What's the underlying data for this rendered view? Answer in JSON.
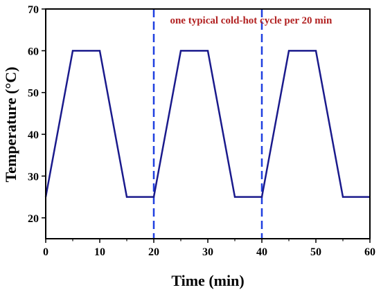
{
  "chart_data": {
    "type": "line",
    "title": "",
    "xlabel": "Time (min)",
    "ylabel": "Temperature (°C)",
    "xlim": [
      0,
      60
    ],
    "ylim": [
      15,
      70
    ],
    "x_ticks": [
      0,
      10,
      20,
      30,
      40,
      50,
      60
    ],
    "y_ticks": [
      20,
      30,
      40,
      50,
      60,
      70
    ],
    "grid": false,
    "series": [
      {
        "color": "#1a1a8c",
        "x": [
          0,
          5,
          10,
          15,
          20,
          25,
          30,
          35,
          40,
          45,
          50,
          55,
          60
        ],
        "y": [
          25,
          60,
          60,
          25,
          25,
          60,
          60,
          25,
          25,
          60,
          60,
          25,
          25
        ]
      }
    ],
    "vlines": [
      {
        "x": 20,
        "style": "dashed",
        "color": "#1f3fe0"
      },
      {
        "x": 40,
        "style": "dashed",
        "color": "#1f3fe0"
      }
    ],
    "annotations": [
      {
        "text": "one typical cold-hot cycle per 20 min",
        "color": "#b22222",
        "x": 38,
        "y": 66.5
      }
    ]
  }
}
